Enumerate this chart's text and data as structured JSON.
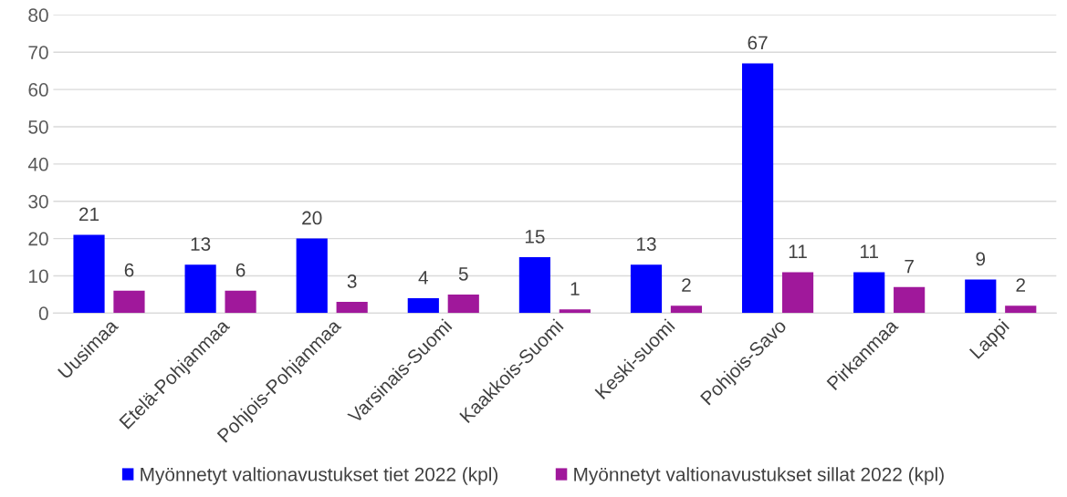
{
  "chart_data": {
    "type": "bar",
    "categories": [
      "Uusimaa",
      "Etelä-Pohjanmaa",
      "Pohjois-Pohjanmaa",
      "Varsinais-Suomi",
      "Kaakkois-Suomi",
      "Keski-suomi",
      "Pohjois-Savo",
      "Pirkanmaa",
      "Lappi"
    ],
    "series": [
      {
        "name": "Myönnetyt valtionavustukset tiet 2022 (kpl)",
        "color": "#0000ff",
        "values": [
          21,
          13,
          20,
          4,
          15,
          13,
          67,
          11,
          9
        ]
      },
      {
        "name": "Myönnetyt valtionavustukset sillat 2022 (kpl)",
        "color": "#a0189b",
        "values": [
          6,
          6,
          3,
          5,
          1,
          2,
          11,
          7,
          2
        ]
      }
    ],
    "ylim": [
      0,
      80
    ],
    "yticks": [
      0,
      10,
      20,
      30,
      40,
      50,
      60,
      70,
      80
    ],
    "grid": "y",
    "legend": "bottom",
    "data_labels": true
  }
}
